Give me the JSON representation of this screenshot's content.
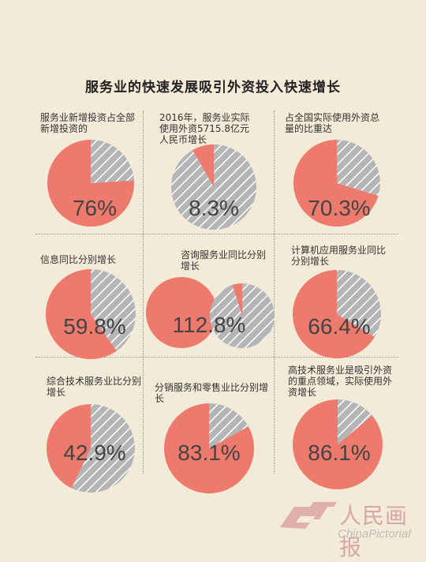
{
  "title": "服务业的快速发展吸引外资投入快速增长",
  "colors": {
    "background": "#f3ead8",
    "primary": "#ed7a6c",
    "secondary": "#b3b5b7",
    "text": "#333333"
  },
  "logo": {
    "cn": "人民画报",
    "en": "ChinaPictorial"
  },
  "chart_data": [
    {
      "type": "pie",
      "label": "服务业新增投资占全部新增投资的",
      "value_label": "76%",
      "values": [
        76,
        24
      ],
      "colors": [
        "#ed7a6c",
        "#b3b5b7"
      ]
    },
    {
      "type": "pie",
      "label": "2016年，服务业实际使用外资5715.8亿元人民币增长",
      "value_label": "8.3%",
      "values": [
        8.3,
        91.7
      ],
      "colors": [
        "#ed7a6c",
        "#b3b5b7"
      ]
    },
    {
      "type": "pie",
      "label": "占全国实际使用外资总量的比重达",
      "value_label": "70.3%",
      "values": [
        70.3,
        29.7
      ],
      "colors": [
        "#ed7a6c",
        "#b3b5b7"
      ]
    },
    {
      "type": "pie",
      "label": "信息同比分别增长",
      "value_label": "59.8%",
      "values": [
        59.8,
        40.2
      ],
      "colors": [
        "#ed7a6c",
        "#b3b5b7"
      ]
    },
    {
      "type": "pie",
      "label": "咨询服务业同比分别增长",
      "value_label": "112.8%",
      "values": [
        112.8,
        100
      ],
      "colors": [
        "#ed7a6c",
        "#b3b5b7"
      ]
    },
    {
      "type": "pie",
      "label": "计算机应用服务业同比分别增长",
      "value_label": "66.4%",
      "values": [
        66.4,
        33.6
      ],
      "colors": [
        "#ed7a6c",
        "#b3b5b7"
      ]
    },
    {
      "type": "pie",
      "label": "综合技术服务业比分别增长",
      "value_label": "42.9%",
      "values": [
        42.9,
        57.1
      ],
      "colors": [
        "#ed7a6c",
        "#b3b5b7"
      ]
    },
    {
      "type": "pie",
      "label": "分销服务和零售业比分别增长",
      "value_label": "83.1%",
      "values": [
        83.1,
        16.9
      ],
      "colors": [
        "#ed7a6c",
        "#b3b5b7"
      ]
    },
    {
      "type": "pie",
      "label": "高技术服务业是吸引外资的重点领域，实际使用外资增长",
      "value_label": "86.1%",
      "values": [
        86.1,
        13.9
      ],
      "colors": [
        "#ed7a6c",
        "#b3b5b7"
      ]
    }
  ]
}
